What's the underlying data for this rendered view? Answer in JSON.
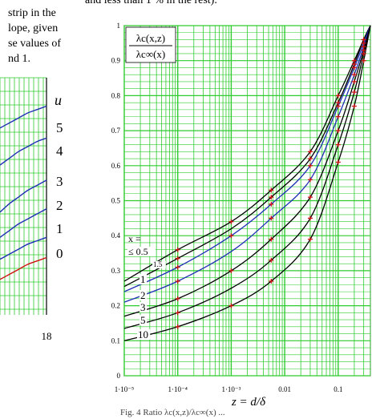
{
  "page_text": {
    "top_line": "and less than 1 % in the rest).",
    "left_para": [
      "strip in the",
      "lope, given",
      "se values of",
      "nd 1."
    ],
    "caption": "Fig. 4 Ratio λc(x,z)/λc∞(x) ..."
  },
  "colors": {
    "grid": "#2ecc2e",
    "curve_black": "#000000",
    "curve_blue": "#1f2fb5",
    "curve_red": "#d01010",
    "marker": "#cc1111"
  },
  "chart_data": [
    {
      "type": "line",
      "panel": "left (cropped)",
      "legend_title": "u",
      "curve_labels": [
        "5",
        "4",
        "3",
        "2",
        "1",
        "0"
      ],
      "x_tick_labels": [
        "18"
      ],
      "series": [
        {
          "label": "5",
          "color": "#1f2fb5",
          "y": [
            0.92,
            0.95,
            0.98,
            1.01,
            1.03,
            1.05
          ]
        },
        {
          "label": "4",
          "color": "#1f2fb5",
          "y": [
            0.7,
            0.74,
            0.78,
            0.81,
            0.84,
            0.86
          ]
        },
        {
          "label": "3",
          "color": "#1f2fb5",
          "y": [
            0.42,
            0.47,
            0.51,
            0.55,
            0.58,
            0.61
          ]
        },
        {
          "label": "2",
          "color": "#1f2fb5",
          "y": [
            0.27,
            0.31,
            0.35,
            0.38,
            0.41,
            0.44
          ]
        },
        {
          "label": "1",
          "color": "#1f2fb5",
          "y": [
            0.14,
            0.17,
            0.2,
            0.23,
            0.25,
            0.27
          ]
        },
        {
          "label": "0",
          "color": "#d01010",
          "y": [
            0.02,
            0.05,
            0.08,
            0.11,
            0.13,
            0.15
          ]
        }
      ]
    },
    {
      "type": "line",
      "panel": "right",
      "title": "λc(x,z) / λc∞(x)",
      "xlabel": "z = d/δ",
      "x_scale": "log",
      "xlim": [
        1e-05,
        0.4
      ],
      "ylim": [
        0,
        1
      ],
      "grid": true,
      "x_tick_labels": [
        "1·10⁻⁵",
        "1·10⁻⁴",
        "1·10⁻³",
        "0.01",
        "0.1"
      ],
      "y_tick_labels": [
        "0",
        "0.1",
        "0.2",
        "0.3",
        "0.4",
        "0.5",
        "0.6",
        "0.7",
        "0.8",
        "0.9",
        "1"
      ],
      "x_label_title": "x =",
      "curve_labels": [
        "≤ 0.5",
        "1.5",
        "1",
        "2",
        "3",
        "5",
        "10"
      ],
      "series": [
        {
          "name": "x ≤ 0.5",
          "color": "#000000",
          "x": [
            1e-05,
            0.0001,
            0.001,
            0.0056,
            0.03,
            0.1,
            0.2,
            0.3,
            0.4
          ],
          "y": [
            0.27,
            0.36,
            0.44,
            0.53,
            0.64,
            0.8,
            0.9,
            0.96,
            1.0
          ]
        },
        {
          "name": "1.5",
          "color": "#000000",
          "x": [
            1e-05,
            0.0001,
            0.001,
            0.0056,
            0.03,
            0.1,
            0.2,
            0.3,
            0.4
          ],
          "y": [
            0.255,
            0.335,
            0.42,
            0.51,
            0.62,
            0.78,
            0.89,
            0.96,
            1.0
          ]
        },
        {
          "name": "1",
          "color": "#1f2fb5",
          "x": [
            1e-05,
            0.0001,
            0.001,
            0.0056,
            0.03,
            0.1,
            0.2,
            0.3,
            0.4
          ],
          "y": [
            0.24,
            0.31,
            0.4,
            0.49,
            0.6,
            0.77,
            0.88,
            0.95,
            1.0
          ]
        },
        {
          "name": "2",
          "color": "#1f2fb5",
          "x": [
            1e-05,
            0.0001,
            0.001,
            0.0056,
            0.03,
            0.1,
            0.2,
            0.3,
            0.4
          ],
          "y": [
            0.21,
            0.27,
            0.355,
            0.45,
            0.56,
            0.74,
            0.86,
            0.94,
            1.0
          ]
        },
        {
          "name": "3",
          "color": "#000000",
          "x": [
            1e-05,
            0.0001,
            0.001,
            0.0056,
            0.03,
            0.1,
            0.2,
            0.3,
            0.4
          ],
          "y": [
            0.17,
            0.22,
            0.3,
            0.39,
            0.51,
            0.7,
            0.84,
            0.93,
            1.0
          ]
        },
        {
          "name": "5",
          "color": "#000000",
          "x": [
            1e-05,
            0.0001,
            0.001,
            0.0056,
            0.03,
            0.1,
            0.2,
            0.3,
            0.4
          ],
          "y": [
            0.135,
            0.18,
            0.25,
            0.33,
            0.45,
            0.66,
            0.81,
            0.92,
            1.0
          ]
        },
        {
          "name": "10",
          "color": "#000000",
          "x": [
            1e-05,
            0.0001,
            0.001,
            0.0056,
            0.03,
            0.1,
            0.2,
            0.3,
            0.4
          ],
          "y": [
            0.1,
            0.14,
            0.2,
            0.27,
            0.39,
            0.61,
            0.77,
            0.9,
            1.0
          ]
        }
      ]
    }
  ]
}
